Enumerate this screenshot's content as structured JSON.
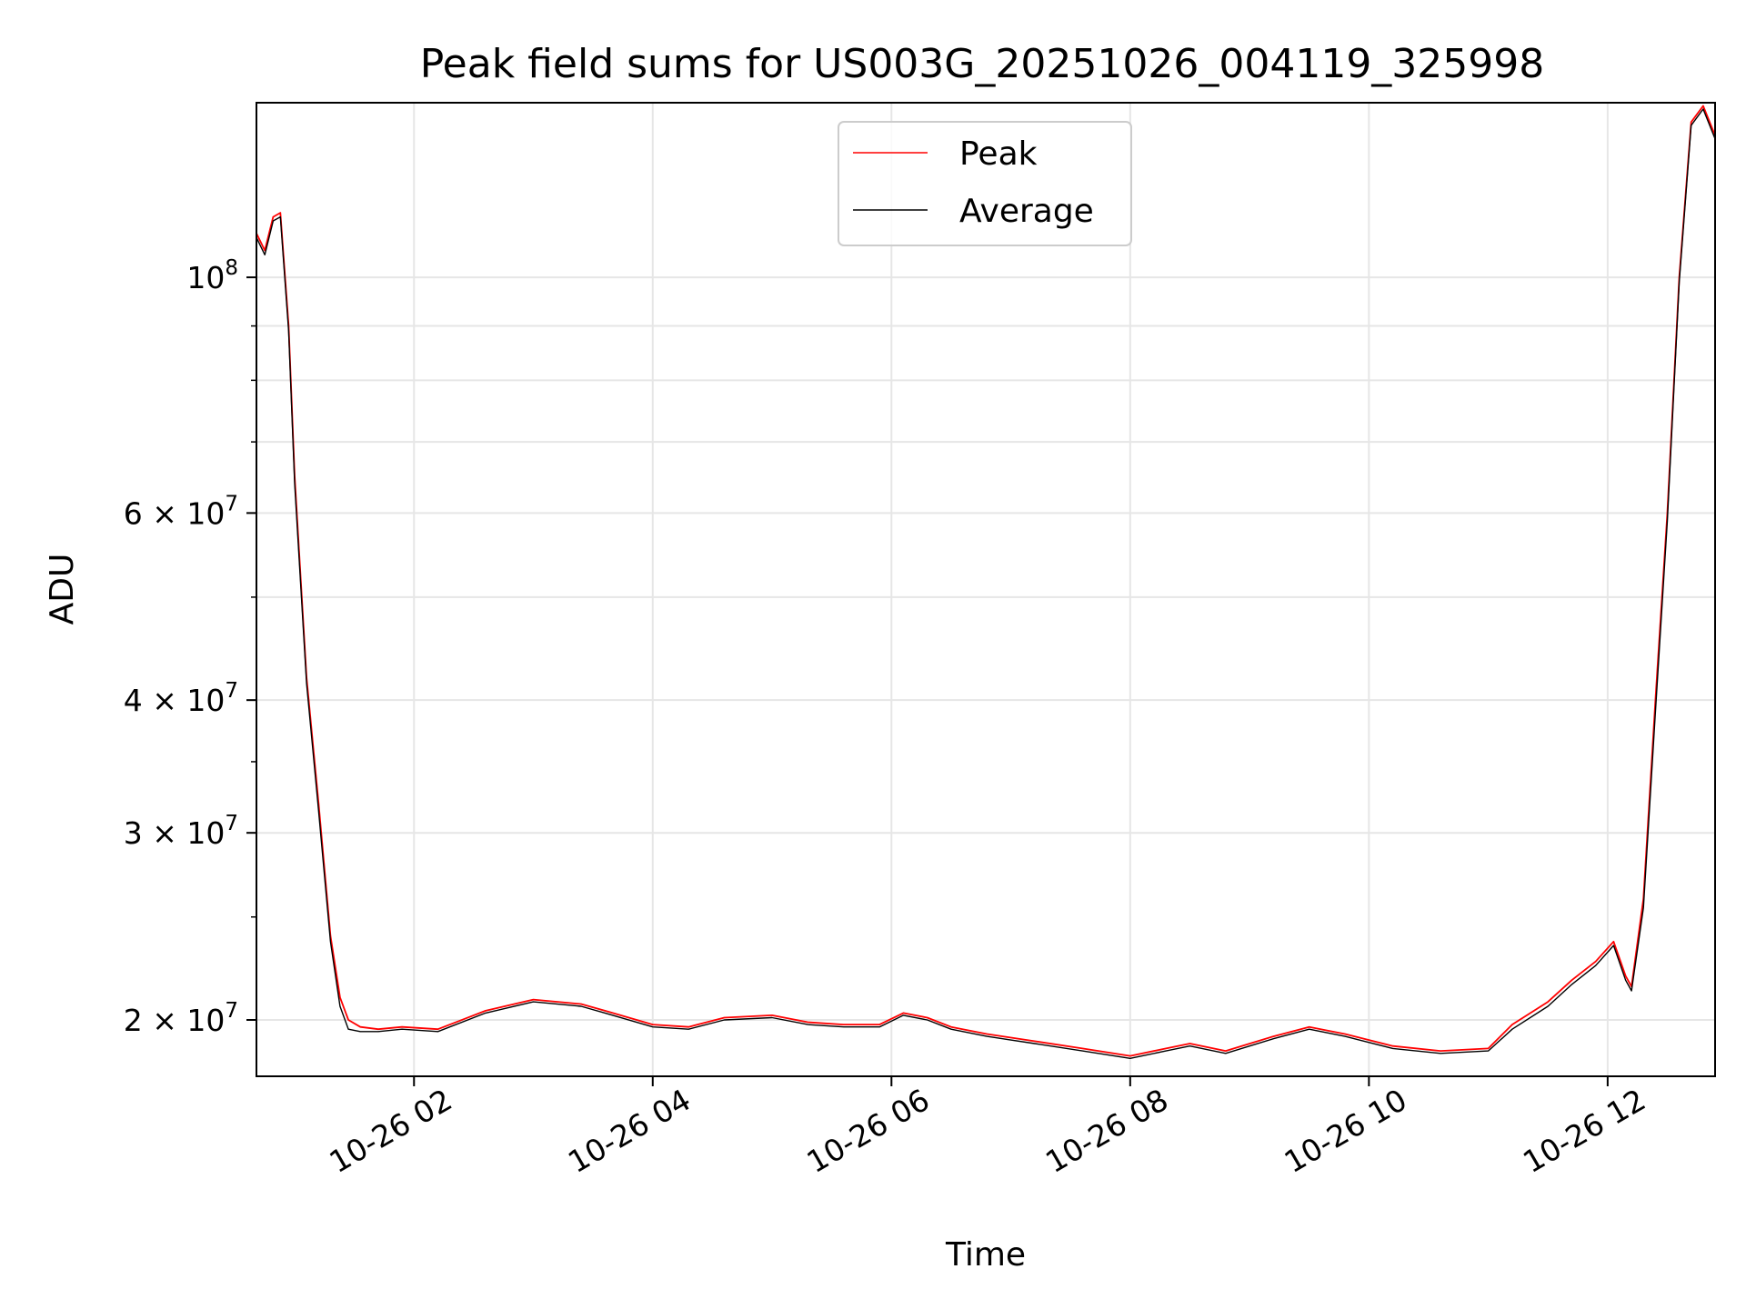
{
  "chart_data": {
    "type": "line",
    "title": "Peak field sums for US003G_20251026_004119_325998",
    "xlabel": "Time",
    "ylabel": "ADU",
    "yscale": "log",
    "ylim": [
      17700000,
      146000000
    ],
    "xlim_hours": [
      0.68,
      12.9
    ],
    "grid": true,
    "legend_placement": "upper center",
    "x_ticks": [
      {
        "hour": 2,
        "label": "10-26 02"
      },
      {
        "hour": 4,
        "label": "10-26 04"
      },
      {
        "hour": 6,
        "label": "10-26 06"
      },
      {
        "hour": 8,
        "label": "10-26 08"
      },
      {
        "hour": 10,
        "label": "10-26 10"
      },
      {
        "hour": 12,
        "label": "10-26 12"
      }
    ],
    "y_ticks": [
      {
        "value": 20000000,
        "mantissa": "2",
        "exponent": "7"
      },
      {
        "value": 30000000,
        "mantissa": "3",
        "exponent": "7"
      },
      {
        "value": 40000000,
        "mantissa": "4",
        "exponent": "7"
      },
      {
        "value": 60000000,
        "mantissa": "6",
        "exponent": "7"
      },
      {
        "value": 100000000,
        "base": "10",
        "exponent": "8"
      }
    ],
    "y_minor_ticks": [
      50000000,
      70000000,
      80000000,
      90000000
    ],
    "series": [
      {
        "name": "Peak",
        "color": "#ff0000",
        "x": [
          0.68,
          0.75,
          0.82,
          0.88,
          0.95,
          1.0,
          1.1,
          1.2,
          1.3,
          1.38,
          1.45,
          1.55,
          1.7,
          1.9,
          2.2,
          2.6,
          3.0,
          3.4,
          3.6,
          4.0,
          4.3,
          4.6,
          5.0,
          5.3,
          5.6,
          5.9,
          6.1,
          6.3,
          6.5,
          6.8,
          7.2,
          7.6,
          8.0,
          8.3,
          8.5,
          8.8,
          9.2,
          9.5,
          9.8,
          10.2,
          10.6,
          11.0,
          11.2,
          11.5,
          11.7,
          11.9,
          12.05,
          12.15,
          12.2,
          12.3,
          12.4,
          12.5,
          12.6,
          12.7,
          12.8,
          12.9
        ],
        "values": [
          110000000,
          106000000,
          114000000,
          115000000,
          90000000,
          65000000,
          42000000,
          32000000,
          24000000,
          21000000,
          20000000,
          19700000,
          19600000,
          19700000,
          19600000,
          20400000,
          20900000,
          20700000,
          20400000,
          19800000,
          19700000,
          20100000,
          20200000,
          19900000,
          19800000,
          19800000,
          20300000,
          20100000,
          19700000,
          19400000,
          19100000,
          18800000,
          18500000,
          18800000,
          19000000,
          18700000,
          19300000,
          19700000,
          19400000,
          18900000,
          18700000,
          18800000,
          19800000,
          20800000,
          21800000,
          22700000,
          23700000,
          22000000,
          21500000,
          26000000,
          40000000,
          60000000,
          100000000,
          140000000,
          145000000,
          136000000
        ]
      },
      {
        "name": "Average",
        "color": "#000000",
        "x": [
          0.68,
          0.75,
          0.82,
          0.88,
          0.95,
          1.0,
          1.1,
          1.2,
          1.3,
          1.38,
          1.45,
          1.55,
          1.7,
          1.9,
          2.2,
          2.6,
          3.0,
          3.4,
          3.6,
          4.0,
          4.3,
          4.6,
          5.0,
          5.3,
          5.6,
          5.9,
          6.1,
          6.3,
          6.5,
          6.8,
          7.2,
          7.6,
          8.0,
          8.3,
          8.5,
          8.8,
          9.2,
          9.5,
          9.8,
          10.2,
          10.6,
          11.0,
          11.2,
          11.5,
          11.7,
          11.9,
          12.05,
          12.15,
          12.2,
          12.3,
          12.4,
          12.5,
          12.6,
          12.7,
          12.8,
          12.9
        ],
        "values": [
          109000000,
          105000000,
          113000000,
          114000000,
          89000000,
          64000000,
          41500000,
          31500000,
          23700000,
          20600000,
          19600000,
          19500000,
          19500000,
          19600000,
          19500000,
          20300000,
          20800000,
          20600000,
          20300000,
          19700000,
          19600000,
          20000000,
          20100000,
          19800000,
          19700000,
          19700000,
          20200000,
          20000000,
          19600000,
          19300000,
          19000000,
          18700000,
          18400000,
          18700000,
          18900000,
          18600000,
          19200000,
          19600000,
          19300000,
          18800000,
          18600000,
          18700000,
          19600000,
          20600000,
          21600000,
          22500000,
          23500000,
          21800000,
          21300000,
          25500000,
          39000000,
          59000000,
          99000000,
          139000000,
          144000000,
          135000000
        ]
      }
    ]
  }
}
